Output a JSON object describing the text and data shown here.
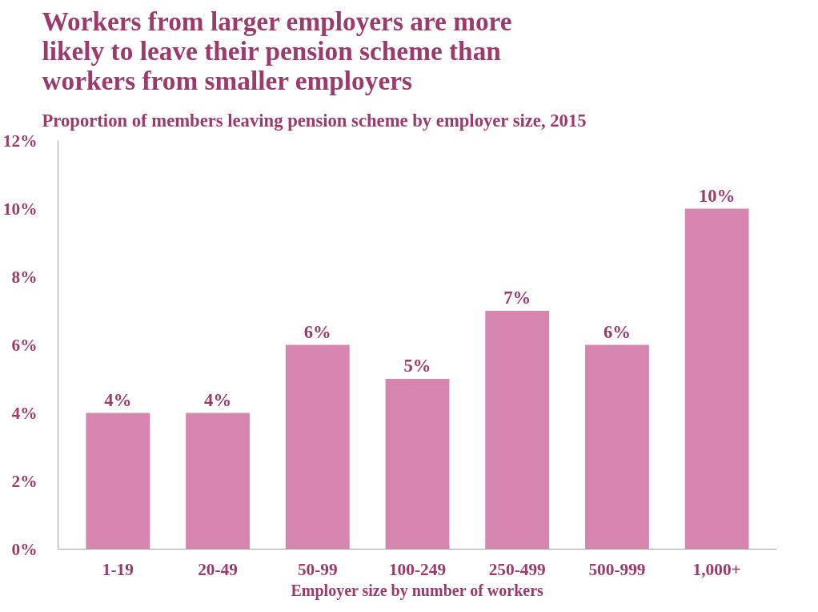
{
  "chart_data": {
    "type": "bar",
    "title": "Workers from larger employers are more\nlikely to leave their pension scheme than\nworkers from smaller employers",
    "subtitle": "Proportion of members leaving pension scheme by employer size, 2015",
    "xlabel": "Employer size by number of workers",
    "categories": [
      "1-19",
      "20-49",
      "50-99",
      "100-249",
      "250-499",
      "500-999",
      "1,000+"
    ],
    "values": [
      4,
      4,
      6,
      5,
      7,
      6,
      10
    ],
    "value_labels": [
      "4%",
      "4%",
      "6%",
      "5%",
      "7%",
      "6%",
      "10%"
    ],
    "color": "#d685ae",
    "ylim": [
      0,
      12
    ],
    "yticks": [
      {
        "value": 0,
        "label": "0%"
      },
      {
        "value": 2,
        "label": "2%"
      },
      {
        "value": 4,
        "label": "4%"
      },
      {
        "value": 6,
        "label": "6%"
      },
      {
        "value": 8,
        "label": "8%"
      },
      {
        "value": 10,
        "label": "10%"
      },
      {
        "value": 12,
        "label": "12%"
      }
    ],
    "grid": false
  }
}
